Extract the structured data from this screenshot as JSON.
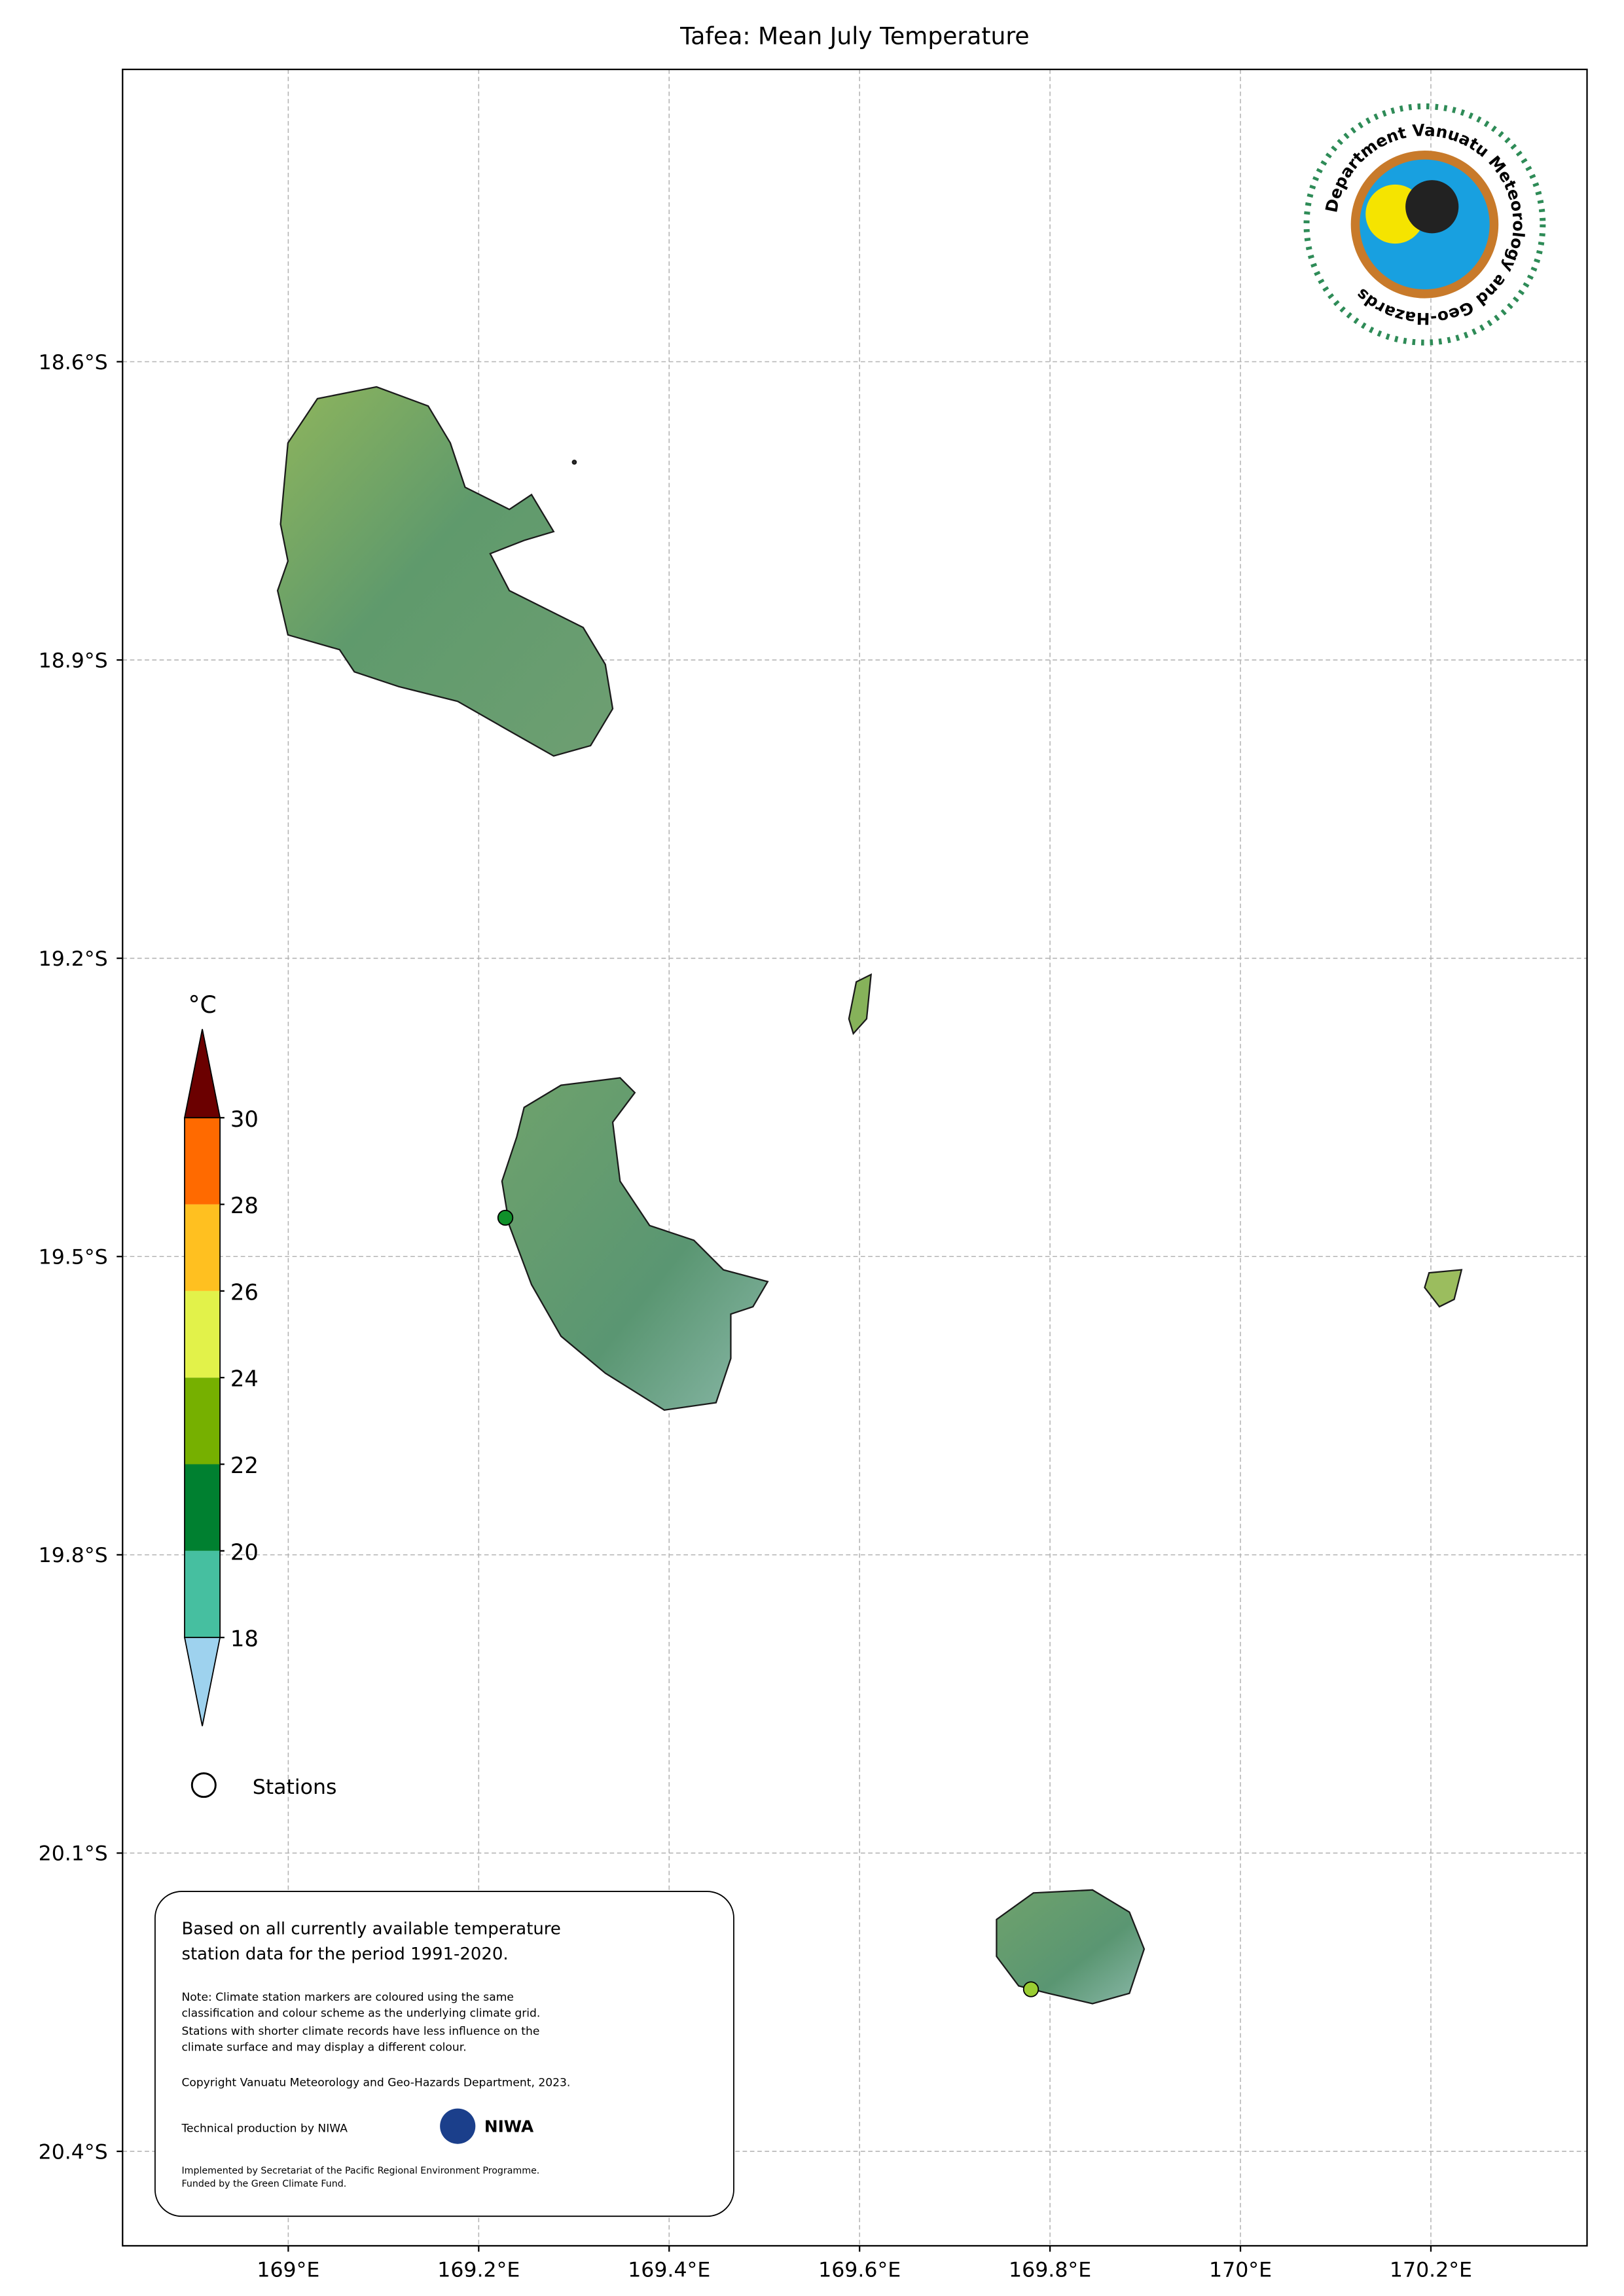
{
  "map": {
    "title": "Tafea: Mean July Temperature",
    "xlim": [
      168.826,
      170.364
    ],
    "ylim": [
      -20.495,
      -18.306
    ],
    "xticks": [
      {
        "value": 169.0,
        "label": "169°E"
      },
      {
        "value": 169.2,
        "label": "169.2°E"
      },
      {
        "value": 169.4,
        "label": "169.4°E"
      },
      {
        "value": 169.6,
        "label": "169.6°E"
      },
      {
        "value": 169.8,
        "label": "169.8°E"
      },
      {
        "value": 170.0,
        "label": "170°E"
      },
      {
        "value": 170.2,
        "label": "170.2°E"
      }
    ],
    "yticks": [
      {
        "value": -18.6,
        "label": "18.6°S"
      },
      {
        "value": -18.9,
        "label": "18.9°S"
      },
      {
        "value": -19.2,
        "label": "19.2°S"
      },
      {
        "value": -19.5,
        "label": "19.5°S"
      },
      {
        "value": -19.8,
        "label": "19.8°S"
      },
      {
        "value": -20.1,
        "label": "20.1°S"
      },
      {
        "value": -20.4,
        "label": "20.4°S"
      }
    ],
    "grid": true,
    "colorbar": {
      "unit": "°C",
      "ticks": [
        18,
        20,
        22,
        24,
        26,
        28,
        30
      ],
      "under_color": "#9ed2ee",
      "colors": [
        "#46bfa0",
        "#008030",
        "#76b000",
        "#e2f24a",
        "#ffc020",
        "#ff6a00"
      ],
      "over_color": "#6b0000"
    },
    "stations_label": "Stations",
    "stations": [
      {
        "lon": 169.228,
        "lat": -19.461,
        "color": "#10902a"
      },
      {
        "lon": 169.78,
        "lat": -20.237,
        "color": "#9acd32"
      }
    ],
    "logo_text": "Department Vanuatu Meteorology and Geo-Hazards",
    "note_box": {
      "summary": [
        "Based on all currently available temperature",
        "station data for the period 1991-2020."
      ],
      "note": [
        "Note: Climate station markers are coloured using the same",
        "classification and colour scheme as the underlying climate grid.",
        "Stations with shorter climate records have less influence on the",
        "climate surface and may display a different colour."
      ],
      "copyright": "Copyright Vanuatu Meteorology and Geo-Hazards Department, 2023.",
      "production": "Technical production by NIWA",
      "niwa": "NIWA",
      "funding": [
        "Implemented by Secretariat of the Pacific Regional Environment Programme.",
        "Funded by the Green Climate Fund."
      ]
    }
  }
}
